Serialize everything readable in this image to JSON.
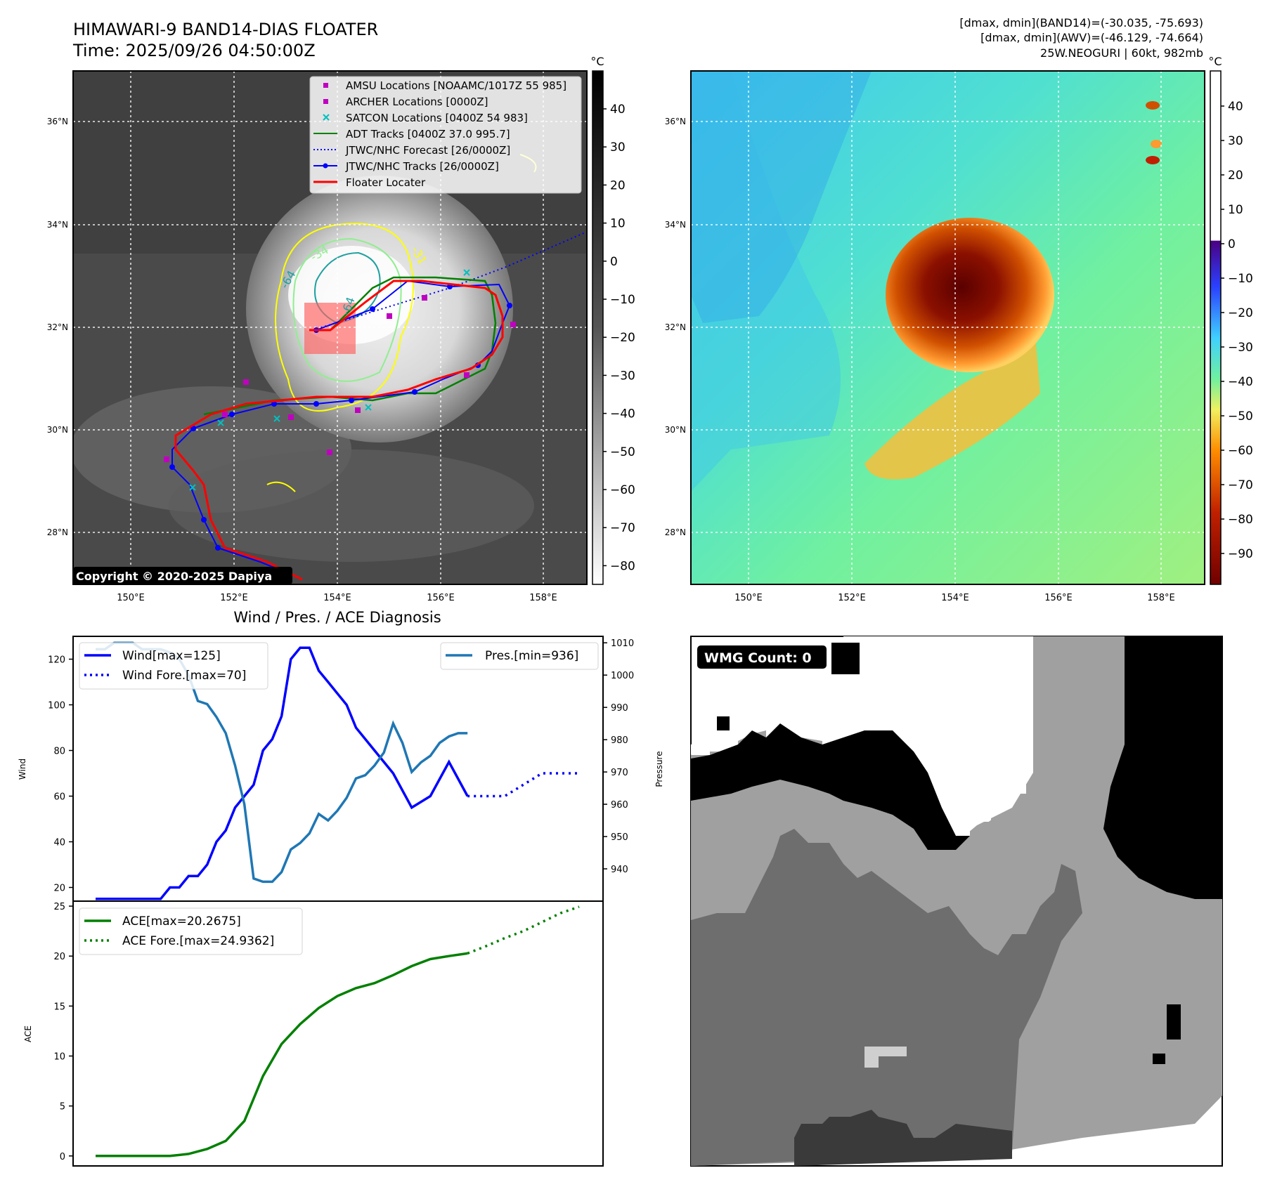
{
  "header": {
    "title": "HIMAWARI-9 BAND14-DIAS FLOATER",
    "time": "Time: 2025/09/26 04:50:00Z",
    "dmax_band14": "[dmax, dmin](BAND14)=(-30.035, -75.693)",
    "dmax_awv": "[dmax, dmin](AWV)=(-46.129, -74.664)",
    "storm": "25W.NEOGURI | 60kt, 982mb"
  },
  "map": {
    "lat_ticks": [
      "36°N",
      "34°N",
      "32°N",
      "30°N",
      "28°N"
    ],
    "lon_ticks": [
      "150°E",
      "152°E",
      "154°E",
      "156°E",
      "158°E"
    ],
    "copyright": "Copyright © 2020-2025 Dapiya",
    "contour_labels": [
      "-64",
      "-34",
      "-64",
      "-31"
    ]
  },
  "colorbar_ir": {
    "unit": "°C",
    "ticks": [
      "40",
      "30",
      "20",
      "10",
      "0",
      "−10",
      "−20",
      "−30",
      "−40",
      "−50",
      "−60",
      "−70",
      "−80"
    ]
  },
  "colorbar_wv": {
    "unit": "°C",
    "ticks": [
      "40",
      "30",
      "20",
      "10",
      "0",
      "−10",
      "−20",
      "−30",
      "−40",
      "−50",
      "−60",
      "−70",
      "−80",
      "−90"
    ]
  },
  "legend": [
    {
      "label": "AMSU Locations [NOAAMC/1017Z 55 985]",
      "marker": "square",
      "color": "#c000c0"
    },
    {
      "label": "ARCHER Locations [0000Z]",
      "marker": "square",
      "color": "#c000c0"
    },
    {
      "label": "SATCON Locations [0400Z 54 983]",
      "marker": "x",
      "color": "#00c0c0"
    },
    {
      "label": "ADT Tracks [0400Z 37.0 995.7]",
      "marker": "line",
      "color": "#008000"
    },
    {
      "label": "JTWC/NHC Forecast [26/0000Z]",
      "marker": "dotted",
      "color": "#0000ff"
    },
    {
      "label": "JTWC/NHC Tracks [26/0000Z]",
      "marker": "line-dot",
      "color": "#0000ff"
    },
    {
      "label": "Floater Locater",
      "marker": "line",
      "color": "#ff0000"
    }
  ],
  "diagnosis_title": "Wind / Pres. / ACE Diagnosis",
  "wmg": {
    "label": "WMG Count: 0"
  },
  "chart_data": [
    {
      "type": "line",
      "title": "Wind / Pres. / ACE Diagnosis",
      "ylabel": "Wind",
      "ylabel_right": "Pressure",
      "ylim": [
        14,
        130
      ],
      "ylim_right": [
        930,
        1012
      ],
      "yticks": [
        20,
        40,
        60,
        80,
        100,
        120
      ],
      "yticks_right": [
        940,
        950,
        960,
        970,
        980,
        990,
        1000,
        1010
      ],
      "legend_left": [
        "Wind[max=125]",
        "Wind Fore.[max=70]"
      ],
      "legend_right": [
        "Pres.[min=936]"
      ],
      "series": [
        {
          "name": "Wind",
          "color": "#0000ff",
          "style": "solid",
          "x": [
            0,
            3,
            6,
            7,
            8,
            9,
            10,
            11,
            12,
            13,
            14,
            15,
            16,
            17,
            18,
            19,
            20,
            21,
            22,
            23,
            24,
            25,
            26,
            27,
            28,
            30,
            32,
            34,
            36,
            38,
            40
          ],
          "values": [
            15,
            15,
            15,
            15,
            20,
            20,
            25,
            25,
            30,
            40,
            45,
            55,
            60,
            65,
            80,
            85,
            95,
            120,
            125,
            125,
            115,
            110,
            105,
            100,
            90,
            80,
            70,
            55,
            60,
            75,
            60
          ]
        },
        {
          "name": "Wind Fore.",
          "color": "#0000ff",
          "style": "dotted",
          "x": [
            40,
            41,
            42,
            43,
            44,
            46,
            48,
            50,
            52
          ],
          "values": [
            60,
            60,
            60,
            60,
            60,
            65,
            70,
            70,
            70
          ]
        },
        {
          "name": "Pres.",
          "color": "#1f77b4",
          "style": "solid",
          "axis": "right",
          "x": [
            0,
            1,
            2,
            3,
            4,
            5,
            6,
            7,
            8,
            9,
            10,
            11,
            12,
            13,
            14,
            15,
            16,
            17,
            18,
            19,
            20,
            21,
            22,
            23,
            24,
            25,
            26,
            27,
            28,
            29,
            30,
            31,
            32,
            33,
            34,
            35,
            36,
            37,
            38,
            39,
            40
          ],
          "values": [
            1008,
            1008,
            1010,
            1010,
            1010,
            1008,
            1008,
            1008,
            1007,
            1005,
            1000,
            992,
            991,
            987,
            982,
            972,
            960,
            937,
            936,
            936,
            939,
            946,
            948,
            951,
            957,
            955,
            958,
            962,
            968,
            969,
            972,
            976,
            985,
            979,
            970,
            973,
            975,
            979,
            981,
            982,
            982
          ]
        }
      ]
    },
    {
      "type": "line",
      "ylabel": "ACE",
      "ylim": [
        -1,
        25.5
      ],
      "yticks": [
        0,
        5,
        10,
        15,
        20,
        25
      ],
      "legend": [
        "ACE[max=20.2675]",
        "ACE Fore.[max=24.9362]"
      ],
      "series": [
        {
          "name": "ACE",
          "color": "#008000",
          "style": "solid",
          "x": [
            0,
            4,
            8,
            10,
            12,
            14,
            16,
            18,
            20,
            22,
            24,
            26,
            28,
            30,
            32,
            34,
            36,
            38,
            40
          ],
          "values": [
            0,
            0,
            0,
            0.2,
            0.7,
            1.5,
            3.5,
            8,
            11.2,
            13.2,
            14.8,
            16,
            16.8,
            17.3,
            18.1,
            19,
            19.7,
            20,
            20.27
          ]
        },
        {
          "name": "ACE Fore.",
          "color": "#008000",
          "style": "dotted",
          "x": [
            40,
            42,
            44,
            46,
            48,
            50,
            52
          ],
          "values": [
            20.27,
            21,
            21.8,
            22.5,
            23.4,
            24.3,
            24.94
          ]
        }
      ]
    }
  ]
}
